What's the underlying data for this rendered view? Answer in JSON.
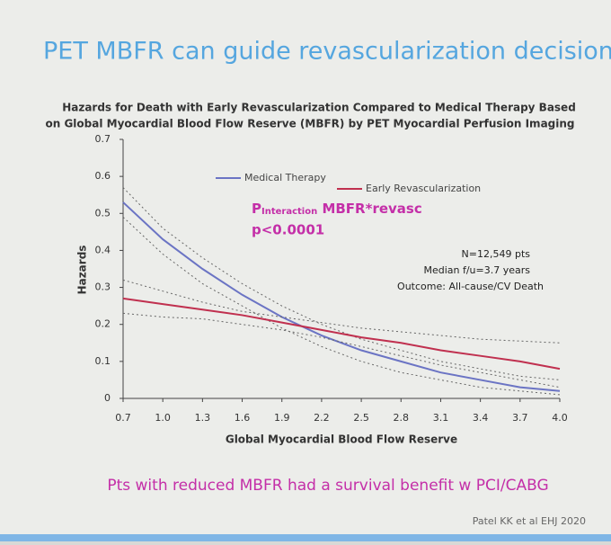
{
  "slide": {
    "title": "PET MBFR can guide revascularization decision",
    "footer": "Pts with reduced MBFR had a survival benefit w PCI/CABG",
    "citation": "Patel KK  et al EHJ 2020"
  },
  "chart_data": {
    "type": "line",
    "title": [
      "Hazards for Death with Early Revascularization Compared to Medical Therapy Based",
      "on Global Myocardial Blood Flow Reserve (MBFR) by PET Myocardial Perfusion Imaging"
    ],
    "x_label": "Global Myocardial Blood Flow Reserve",
    "y_label": "Hazards",
    "x": [
      0.7,
      1.0,
      1.3,
      1.6,
      1.9,
      2.2,
      2.5,
      2.8,
      3.1,
      3.4,
      3.7,
      4.0
    ],
    "series": [
      {
        "name": "Medical Therapy",
        "color": "#6b74c4",
        "values": [
          0.53,
          0.43,
          0.35,
          0.28,
          0.22,
          0.17,
          0.13,
          0.1,
          0.07,
          0.05,
          0.03,
          0.02
        ],
        "ci_upper": [
          0.57,
          0.46,
          0.38,
          0.31,
          0.25,
          0.2,
          0.16,
          0.13,
          0.1,
          0.08,
          0.06,
          0.05
        ],
        "ci_lower": [
          0.49,
          0.39,
          0.31,
          0.25,
          0.19,
          0.14,
          0.1,
          0.07,
          0.05,
          0.03,
          0.02,
          0.01
        ]
      },
      {
        "name": "Early Revascularization",
        "color": "#c0304f",
        "values": [
          0.27,
          0.255,
          0.24,
          0.225,
          0.205,
          0.185,
          0.165,
          0.15,
          0.13,
          0.115,
          0.1,
          0.08
        ],
        "ci_upper": [
          0.32,
          0.29,
          0.26,
          0.235,
          0.22,
          0.205,
          0.19,
          0.18,
          0.17,
          0.16,
          0.155,
          0.15
        ],
        "ci_lower": [
          0.23,
          0.22,
          0.215,
          0.2,
          0.185,
          0.165,
          0.14,
          0.115,
          0.09,
          0.07,
          0.05,
          0.03
        ]
      }
    ],
    "xlim": [
      0.7,
      4.0
    ],
    "xticks": [
      0.7,
      {
        "value": 1,
        "label": "1.0"
      },
      1.3,
      1.6,
      1.9,
      2.2,
      2.5,
      2.8,
      3.1,
      3.4,
      3.7,
      {
        "value": 4,
        "label": "4.0"
      }
    ],
    "ylim": [
      0,
      0.7
    ],
    "yticks": [
      0,
      0.1,
      0.2,
      0.3,
      0.4,
      0.5,
      0.6,
      0.7
    ],
    "annotations": [
      "P",
      "Interaction",
      " MBFR*revasc",
      "p<0.0001",
      "N=12,549 pts",
      "Median f/u=3.7 years",
      "Outcome: All-cause/CV Death"
    ]
  }
}
